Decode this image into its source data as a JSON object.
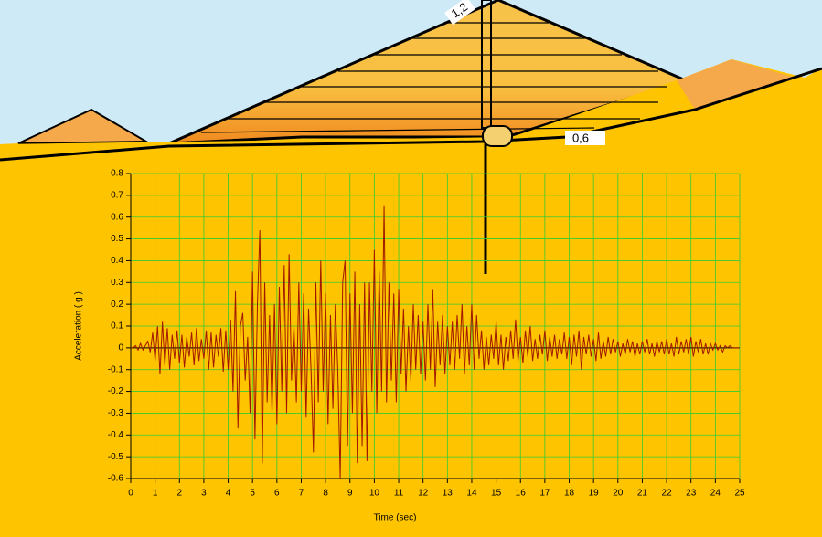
{
  "chart_data": {
    "type": "line",
    "xlabel": "Time (sec)",
    "ylabel": "Acceleration ( g )",
    "annotations": [
      "1,2",
      "0,6"
    ],
    "grid": true,
    "grid_color": "#33cc33",
    "xlim": [
      0,
      25
    ],
    "ylim": [
      -0.6,
      0.8
    ],
    "xticks": [
      0,
      1,
      2,
      3,
      4,
      5,
      6,
      7,
      8,
      9,
      10,
      11,
      12,
      13,
      14,
      15,
      16,
      17,
      18,
      19,
      20,
      21,
      22,
      23,
      24,
      25
    ],
    "yticks": [
      0.8,
      0.7,
      0.6,
      0.5,
      0.4,
      0.3,
      0.2,
      0.1,
      0,
      -0.1,
      -0.2,
      -0.3,
      -0.4,
      -0.5,
      -0.6
    ],
    "x": [
      0,
      0.1,
      0.2,
      0.3,
      0.4,
      0.5,
      0.6,
      0.7,
      0.8,
      0.9,
      1,
      1.1,
      1.2,
      1.3,
      1.4,
      1.5,
      1.6,
      1.7,
      1.8,
      1.9,
      2,
      2.1,
      2.2,
      2.3,
      2.4,
      2.5,
      2.6,
      2.7,
      2.8,
      2.9,
      3,
      3.1,
      3.2,
      3.3,
      3.4,
      3.5,
      3.6,
      3.7,
      3.8,
      3.9,
      4,
      4.1,
      4.2,
      4.3,
      4.4,
      4.5,
      4.6,
      4.7,
      4.8,
      4.9,
      5,
      5.1,
      5.2,
      5.3,
      5.4,
      5.5,
      5.6,
      5.7,
      5.8,
      5.9,
      6,
      6.1,
      6.2,
      6.3,
      6.4,
      6.5,
      6.6,
      6.7,
      6.8,
      6.9,
      7,
      7.1,
      7.2,
      7.3,
      7.4,
      7.5,
      7.6,
      7.7,
      7.8,
      7.9,
      8,
      8.1,
      8.2,
      8.3,
      8.4,
      8.5,
      8.6,
      8.7,
      8.8,
      8.9,
      9,
      9.1,
      9.2,
      9.3,
      9.4,
      9.5,
      9.6,
      9.7,
      9.8,
      9.9,
      10,
      10.1,
      10.2,
      10.3,
      10.4,
      10.5,
      10.6,
      10.7,
      10.8,
      10.9,
      11,
      11.1,
      11.2,
      11.3,
      11.4,
      11.5,
      11.6,
      11.7,
      11.8,
      11.9,
      12,
      12.1,
      12.2,
      12.3,
      12.4,
      12.5,
      12.6,
      12.7,
      12.8,
      12.9,
      13,
      13.1,
      13.2,
      13.3,
      13.4,
      13.5,
      13.6,
      13.7,
      13.8,
      13.9,
      14,
      14.1,
      14.2,
      14.3,
      14.4,
      14.5,
      14.6,
      14.7,
      14.8,
      14.9,
      15,
      15.1,
      15.2,
      15.3,
      15.4,
      15.5,
      15.6,
      15.7,
      15.8,
      15.9,
      16,
      16.1,
      16.2,
      16.3,
      16.4,
      16.5,
      16.6,
      16.7,
      16.8,
      16.9,
      17,
      17.1,
      17.2,
      17.3,
      17.4,
      17.5,
      17.6,
      17.7,
      17.8,
      17.9,
      18,
      18.1,
      18.2,
      18.3,
      18.4,
      18.5,
      18.6,
      18.7,
      18.8,
      18.9,
      19,
      19.1,
      19.2,
      19.3,
      19.4,
      19.5,
      19.6,
      19.7,
      19.8,
      19.9,
      20,
      20.1,
      20.2,
      20.3,
      20.4,
      20.5,
      20.6,
      20.7,
      20.8,
      20.9,
      21,
      21.1,
      21.2,
      21.3,
      21.4,
      21.5,
      21.6,
      21.7,
      21.8,
      21.9,
      22,
      22.1,
      22.2,
      22.3,
      22.4,
      22.5,
      22.6,
      22.7,
      22.8,
      22.9,
      23,
      23.1,
      23.2,
      23.3,
      23.4,
      23.5,
      23.6,
      23.7,
      23.8,
      23.9,
      24,
      24.1,
      24.2,
      24.3,
      24.4,
      24.5,
      24.6,
      24.7,
      24.8,
      24.9,
      25
    ],
    "series": [
      {
        "color": "#a01800",
        "values": [
          0,
          0,
          0.01,
          -0.01,
          0.02,
          -0.01,
          0.01,
          0.03,
          -0.02,
          0.07,
          -0.06,
          0.1,
          -0.12,
          0.12,
          -0.08,
          0.09,
          -0.1,
          0.06,
          -0.05,
          0.08,
          -0.07,
          0.06,
          -0.09,
          0.05,
          -0.04,
          0.07,
          -0.08,
          0.09,
          -0.06,
          0.04,
          -0.05,
          0.08,
          -0.1,
          0.07,
          -0.09,
          0.06,
          -0.04,
          0.09,
          -0.11,
          0.08,
          -0.1,
          0.13,
          -0.2,
          0.26,
          -0.37,
          0.1,
          0.16,
          -0.15,
          0.05,
          -0.3,
          0.35,
          -0.42,
          0.2,
          0.54,
          -0.53,
          0.3,
          -0.25,
          0.15,
          -0.3,
          0.2,
          -0.35,
          0.28,
          -0.2,
          0.38,
          -0.3,
          0.43,
          -0.15,
          0.1,
          -0.25,
          0.3,
          -0.2,
          0.25,
          -0.32,
          0.18,
          -0.1,
          -0.48,
          0.3,
          -0.25,
          0.4,
          -0.2,
          0.25,
          -0.35,
          0.15,
          -0.28,
          0.2,
          -0.1,
          -0.6,
          0.3,
          0.4,
          -0.45,
          0.25,
          -0.3,
          0.35,
          -0.53,
          0.2,
          -0.45,
          0.3,
          -0.52,
          0.3,
          -0.2,
          0.45,
          -0.3,
          0.35,
          -0.2,
          0.65,
          -0.25,
          0.3,
          -0.15,
          0.25,
          -0.25,
          0.27,
          -0.12,
          0.18,
          -0.2,
          0.1,
          -0.15,
          0.2,
          -0.1,
          0.15,
          -0.12,
          0.12,
          -0.15,
          0.2,
          -0.1,
          0.27,
          -0.18,
          0.12,
          -0.08,
          0.15,
          -0.12,
          0.1,
          -0.08,
          0.12,
          -0.1,
          0.15,
          -0.05,
          0.2,
          -0.12,
          0.1,
          -0.08,
          0.2,
          -0.1,
          0.15,
          -0.05,
          0.08,
          -0.1,
          0.05,
          -0.08,
          0.06,
          -0.05,
          0.12,
          -0.08,
          0.06,
          -0.1,
          0.05,
          -0.06,
          0.08,
          -0.05,
          0.13,
          -0.06,
          0.05,
          -0.07,
          0.08,
          -0.04,
          0.1,
          -0.06,
          0.04,
          -0.05,
          0.06,
          -0.03,
          0.08,
          -0.06,
          0.05,
          -0.04,
          0.06,
          -0.05,
          0.04,
          -0.03,
          0.07,
          -0.05,
          0.05,
          -0.08,
          0.06,
          -0.04,
          0.08,
          -0.1,
          0.05,
          -0.03,
          0.06,
          -0.04,
          0.04,
          -0.06,
          0.07,
          -0.05,
          0.03,
          -0.04,
          0.05,
          -0.03,
          0.04,
          -0.02,
          0.03,
          -0.04,
          0.02,
          -0.03,
          0.04,
          -0.02,
          0.03,
          -0.04,
          0.02,
          -0.03,
          0.03,
          -0.02,
          0.04,
          -0.03,
          0.02,
          -0.04,
          0.03,
          -0.02,
          0.03,
          -0.03,
          0.04,
          -0.03,
          0.02,
          -0.04,
          0.05,
          -0.03,
          0.03,
          -0.02,
          0.04,
          -0.03,
          0.05,
          -0.04,
          0.03,
          -0.02,
          0.04,
          -0.03,
          0.02,
          -0.03,
          0.02,
          -0.01,
          0.02,
          -0.01,
          0.01,
          -0.02,
          0.01,
          0,
          0.01,
          0,
          0,
          0,
          0
        ]
      }
    ]
  }
}
